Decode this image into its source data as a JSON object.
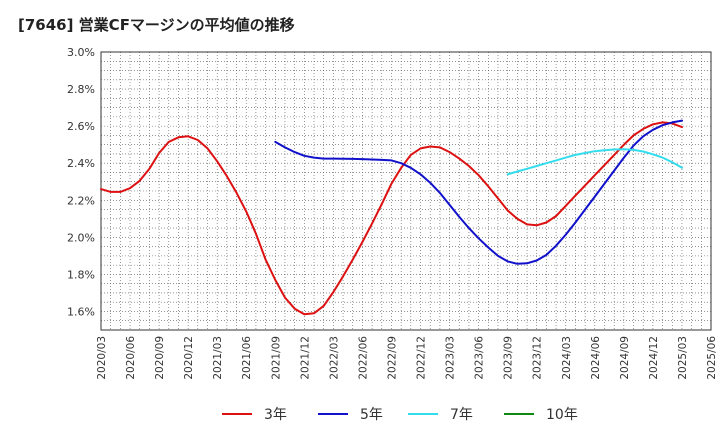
{
  "title": "[7646]  営業CFマージンの平均値の推移",
  "colors": {
    "3yr": "#dd1111",
    "5yr": "#1111cc",
    "7yr": "#33ddee",
    "10yr": "#118811"
  },
  "chart_data": {
    "type": "line",
    "title": "[7646]  営業CFマージンの平均値の推移",
    "xlabel": "",
    "ylabel": "",
    "ylim": [
      1.5,
      3.0
    ],
    "y_ticks": [
      "1.6%",
      "1.8%",
      "2.0%",
      "2.2%",
      "2.4%",
      "2.6%",
      "2.8%",
      "3.0%"
    ],
    "x_ticks": [
      "2020/03",
      "2020/06",
      "2020/09",
      "2020/12",
      "2021/03",
      "2021/06",
      "2021/09",
      "2021/12",
      "2022/03",
      "2022/06",
      "2022/09",
      "2022/12",
      "2023/03",
      "2023/06",
      "2023/09",
      "2023/12",
      "2024/03",
      "2024/06",
      "2024/09",
      "2024/12",
      "2025/03",
      "2025/06"
    ],
    "grid": true,
    "legend_position": "bottom",
    "series": [
      {
        "name": "3年",
        "color": "#dd1111",
        "points": [
          [
            "2020/03",
            2.26
          ],
          [
            "2020/04",
            2.245
          ],
          [
            "2020/05",
            2.245
          ],
          [
            "2020/06",
            2.265
          ],
          [
            "2020/07",
            2.305
          ],
          [
            "2020/08",
            2.37
          ],
          [
            "2020/09",
            2.455
          ],
          [
            "2020/10",
            2.515
          ],
          [
            "2020/11",
            2.54
          ],
          [
            "2020/12",
            2.545
          ],
          [
            "2021/01",
            2.525
          ],
          [
            "2021/02",
            2.48
          ],
          [
            "2021/03",
            2.41
          ],
          [
            "2021/04",
            2.33
          ],
          [
            "2021/05",
            2.24
          ],
          [
            "2021/06",
            2.14
          ],
          [
            "2021/07",
            2.02
          ],
          [
            "2021/08",
            1.88
          ],
          [
            "2021/09",
            1.77
          ],
          [
            "2021/10",
            1.675
          ],
          [
            "2021/11",
            1.615
          ],
          [
            "2021/12",
            1.585
          ],
          [
            "2022/01",
            1.59
          ],
          [
            "2022/02",
            1.63
          ],
          [
            "2022/03",
            1.705
          ],
          [
            "2022/04",
            1.79
          ],
          [
            "2022/05",
            1.88
          ],
          [
            "2022/06",
            1.975
          ],
          [
            "2022/07",
            2.075
          ],
          [
            "2022/08",
            2.18
          ],
          [
            "2022/09",
            2.29
          ],
          [
            "2022/10",
            2.375
          ],
          [
            "2022/11",
            2.445
          ],
          [
            "2022/12",
            2.48
          ],
          [
            "2023/01",
            2.49
          ],
          [
            "2023/02",
            2.485
          ],
          [
            "2023/03",
            2.46
          ],
          [
            "2023/04",
            2.425
          ],
          [
            "2023/05",
            2.385
          ],
          [
            "2023/06",
            2.335
          ],
          [
            "2023/07",
            2.275
          ],
          [
            "2023/08",
            2.21
          ],
          [
            "2023/09",
            2.145
          ],
          [
            "2023/10",
            2.1
          ],
          [
            "2023/11",
            2.07
          ],
          [
            "2023/12",
            2.065
          ],
          [
            "2024/01",
            2.08
          ],
          [
            "2024/02",
            2.115
          ],
          [
            "2024/03",
            2.17
          ],
          [
            "2024/04",
            2.225
          ],
          [
            "2024/05",
            2.28
          ],
          [
            "2024/06",
            2.335
          ],
          [
            "2024/07",
            2.39
          ],
          [
            "2024/08",
            2.445
          ],
          [
            "2024/09",
            2.5
          ],
          [
            "2024/10",
            2.55
          ],
          [
            "2024/11",
            2.585
          ],
          [
            "2024/12",
            2.61
          ],
          [
            "2025/01",
            2.62
          ],
          [
            "2025/02",
            2.615
          ],
          [
            "2025/03",
            2.595
          ]
        ]
      },
      {
        "name": "5年",
        "color": "#1111cc",
        "points": [
          [
            "2021/09",
            2.515
          ],
          [
            "2021/10",
            2.485
          ],
          [
            "2021/11",
            2.46
          ],
          [
            "2021/12",
            2.44
          ],
          [
            "2022/01",
            2.43
          ],
          [
            "2022/02",
            2.425
          ],
          [
            "2022/03",
            2.425
          ],
          [
            "2022/04",
            2.424
          ],
          [
            "2022/05",
            2.423
          ],
          [
            "2022/06",
            2.422
          ],
          [
            "2022/07",
            2.42
          ],
          [
            "2022/08",
            2.418
          ],
          [
            "2022/09",
            2.415
          ],
          [
            "2022/10",
            2.4
          ],
          [
            "2022/11",
            2.375
          ],
          [
            "2022/12",
            2.34
          ],
          [
            "2023/01",
            2.295
          ],
          [
            "2023/02",
            2.24
          ],
          [
            "2023/03",
            2.175
          ],
          [
            "2023/04",
            2.11
          ],
          [
            "2023/05",
            2.05
          ],
          [
            "2023/06",
            1.995
          ],
          [
            "2023/07",
            1.945
          ],
          [
            "2023/08",
            1.9
          ],
          [
            "2023/09",
            1.87
          ],
          [
            "2023/10",
            1.857
          ],
          [
            "2023/11",
            1.86
          ],
          [
            "2023/12",
            1.875
          ],
          [
            "2024/01",
            1.905
          ],
          [
            "2024/02",
            1.955
          ],
          [
            "2024/03",
            2.015
          ],
          [
            "2024/04",
            2.08
          ],
          [
            "2024/05",
            2.15
          ],
          [
            "2024/06",
            2.22
          ],
          [
            "2024/07",
            2.29
          ],
          [
            "2024/08",
            2.36
          ],
          [
            "2024/09",
            2.43
          ],
          [
            "2024/10",
            2.495
          ],
          [
            "2024/11",
            2.545
          ],
          [
            "2024/12",
            2.58
          ],
          [
            "2025/01",
            2.605
          ],
          [
            "2025/02",
            2.62
          ],
          [
            "2025/03",
            2.63
          ]
        ]
      },
      {
        "name": "7年",
        "color": "#33ddee",
        "points": [
          [
            "2023/09",
            2.34
          ],
          [
            "2023/10",
            2.355
          ],
          [
            "2023/11",
            2.37
          ],
          [
            "2023/12",
            2.385
          ],
          [
            "2024/01",
            2.4
          ],
          [
            "2024/02",
            2.415
          ],
          [
            "2024/03",
            2.43
          ],
          [
            "2024/04",
            2.445
          ],
          [
            "2024/05",
            2.455
          ],
          [
            "2024/06",
            2.465
          ],
          [
            "2024/07",
            2.47
          ],
          [
            "2024/08",
            2.474
          ],
          [
            "2024/09",
            2.475
          ],
          [
            "2024/10",
            2.472
          ],
          [
            "2024/11",
            2.463
          ],
          [
            "2024/12",
            2.448
          ],
          [
            "2025/01",
            2.43
          ],
          [
            "2025/02",
            2.405
          ],
          [
            "2025/03",
            2.375
          ]
        ]
      },
      {
        "name": "10年",
        "color": "#118811",
        "points": []
      }
    ]
  }
}
